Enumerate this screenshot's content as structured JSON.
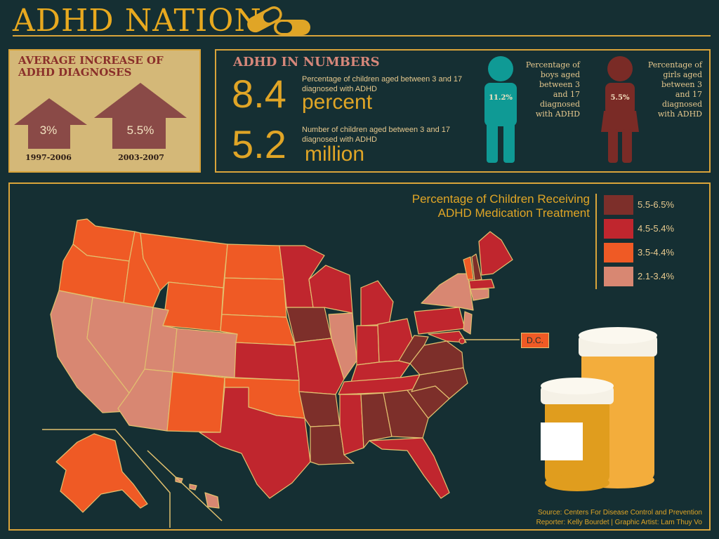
{
  "header": {
    "title": "ADHD NATION"
  },
  "increase_panel": {
    "title_line1": "AVERAGE INCREASE OF",
    "title_line2": "ADHD DIAGNOSES",
    "items": [
      {
        "value": "3%",
        "period": "1997-2006"
      },
      {
        "value": "5.5%",
        "period": "2003-2007"
      }
    ]
  },
  "numbers_panel": {
    "title": "ADHD IN NUMBERS",
    "stat1": {
      "value": "8.4",
      "unit": "percent",
      "desc": "Percentage of children aged between 3 and 17  diagnosed with ADHD"
    },
    "stat2": {
      "value": "5.2",
      "unit": "million",
      "desc": "Number of children aged between 3 and 17 diagnosed with ADHD"
    },
    "boys": {
      "value": "11.2%",
      "desc": "Percentage of boys aged between 3 and 17 diagnosed with ADHD",
      "color": "#0f9a95"
    },
    "girls": {
      "value": "5.5%",
      "desc": "Percentage of girls aged between 3 and 17 diagnosed with ADHD",
      "color": "#7a2b26"
    }
  },
  "map_panel": {
    "title_line1": "Percentage of Children Receiving",
    "title_line2": "ADHD Medication Treatment",
    "dc_label": "D.C.",
    "legend": [
      {
        "label": "5.5-6.5%",
        "color": "#7d2f2a"
      },
      {
        "label": "4.5-5.4%",
        "color": "#c0262e"
      },
      {
        "label": "3.5-4.4%",
        "color": "#ef5a25"
      },
      {
        "label": "2.1-3.4%",
        "color": "#d88772"
      }
    ],
    "source": "Source: Centers For Disease Control and Prevention",
    "credits": "Reporter: Kelly Bourdet | Graphic Artist: Lam Thuy Vo"
  },
  "colors": {
    "background": "#152f33",
    "accent": "#e0a526",
    "panel_beige": "#d4b878"
  }
}
